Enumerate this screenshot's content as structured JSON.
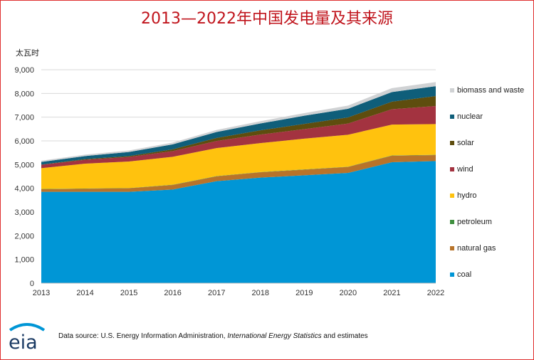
{
  "title": "2013—2022年中国发电量及其来源",
  "source": {
    "prefix": "Data source: U.S. Energy Information Administration, ",
    "italic": "International Energy Statistics",
    "suffix": " and estimates"
  },
  "logo": {
    "text": "eia"
  },
  "chart_data": {
    "type": "area",
    "stacked": true,
    "ylabel": "太瓦时",
    "ylim": [
      0,
      9000
    ],
    "yticks": [
      "0",
      "1,000",
      "2,000",
      "3,000",
      "4,000",
      "5,000",
      "6,000",
      "7,000",
      "8,000",
      "9,000"
    ],
    "categories": [
      "2013",
      "2014",
      "2015",
      "2016",
      "2017",
      "2018",
      "2019",
      "2020",
      "2021",
      "2022"
    ],
    "grid": true,
    "legend_position": "right",
    "series": [
      {
        "name": "coal",
        "color": "#0096d6",
        "values": [
          3850,
          3850,
          3850,
          3950,
          4300,
          4450,
          4550,
          4650,
          5100,
          5150
        ]
      },
      {
        "name": "natural gas",
        "color": "#b8732a",
        "values": [
          110,
          130,
          150,
          190,
          205,
          225,
          235,
          250,
          275,
          250
        ]
      },
      {
        "name": "petroleum",
        "color": "#3e8f3e",
        "values": [
          10,
          10,
          10,
          10,
          10,
          10,
          10,
          10,
          10,
          10
        ]
      },
      {
        "name": "hydro",
        "color": "#ffc20e",
        "values": [
          880,
          1050,
          1120,
          1180,
          1180,
          1220,
          1300,
          1350,
          1300,
          1300
        ]
      },
      {
        "name": "wind",
        "color": "#a33340",
        "values": [
          140,
          160,
          190,
          240,
          300,
          360,
          400,
          470,
          650,
          760
        ]
      },
      {
        "name": "solar",
        "color": "#5e4d0e",
        "values": [
          10,
          30,
          40,
          75,
          130,
          180,
          220,
          260,
          320,
          420
        ]
      },
      {
        "name": "nuclear",
        "color": "#0f5e7a",
        "values": [
          110,
          130,
          170,
          210,
          250,
          290,
          345,
          365,
          405,
          415
        ]
      },
      {
        "name": "biomass and waste",
        "color": "#d0d2d4",
        "values": [
          55,
          60,
          65,
          75,
          85,
          95,
          110,
          135,
          165,
          175
        ]
      }
    ]
  }
}
